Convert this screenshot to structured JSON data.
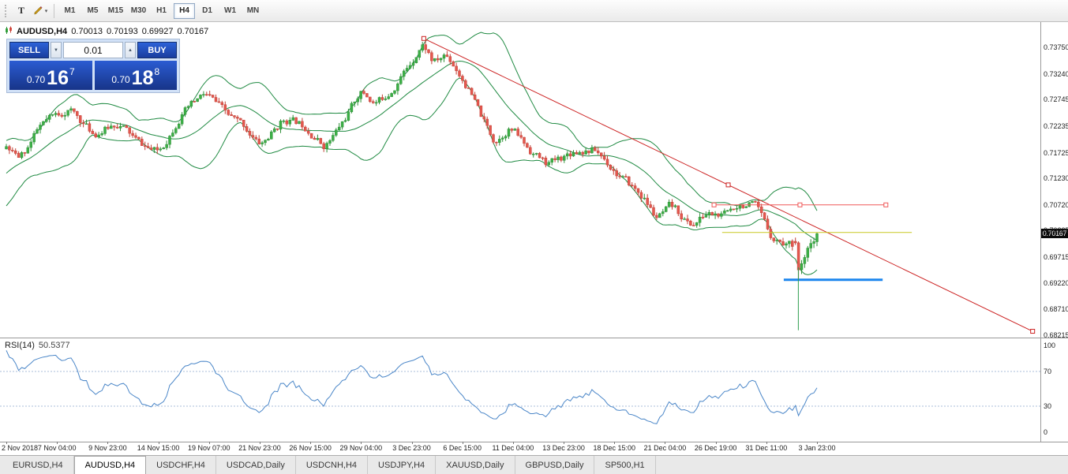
{
  "toolbar": {
    "tools": [
      {
        "name": "text-tool",
        "glyph": "T"
      },
      {
        "name": "draw-tool",
        "glyph": "",
        "dropdown_glyph": "▾"
      }
    ],
    "timeframes": [
      "M1",
      "M5",
      "M15",
      "M30",
      "H1",
      "H4",
      "D1",
      "W1",
      "MN"
    ],
    "active_timeframe": "H4"
  },
  "symbol_line": {
    "symbol": "AUDUSD,H4",
    "open": "0.70013",
    "high": "0.70193",
    "low": "0.69927",
    "close": "0.70167"
  },
  "trade_panel": {
    "sell_label": "SELL",
    "buy_label": "BUY",
    "volume": "0.01",
    "volume_down_glyph": "▼",
    "volume_up_glyph": "▲",
    "sell_price": {
      "prefix": "0.70",
      "big": "16",
      "sup": "7"
    },
    "buy_price": {
      "prefix": "0.70",
      "big": "18",
      "sup": "8"
    }
  },
  "price_scale": {
    "ticks": [
      "0.73750",
      "0.73240",
      "0.72745",
      "0.72235",
      "0.71725",
      "0.71230",
      "0.70720",
      "0.70225",
      "0.69715",
      "0.69220",
      "0.68710",
      "0.68215"
    ],
    "current_price": "0.70167"
  },
  "time_scale": {
    "ticks": [
      "2 Nov 2018",
      "7 Nov 04:00",
      "9 Nov 23:00",
      "14 Nov 15:00",
      "19 Nov 07:00",
      "21 Nov 23:00",
      "26 Nov 15:00",
      "29 Nov 04:00",
      "3 Dec 23:00",
      "6 Dec 15:00",
      "11 Dec 04:00",
      "13 Dec 23:00",
      "18 Dec 15:00",
      "21 Dec 04:00",
      "26 Dec 19:00",
      "31 Dec 11:00",
      "3 Jan 23:00"
    ]
  },
  "rsi_panel": {
    "label": "RSI(14)",
    "value": "50.5377",
    "scale_ticks": [
      {
        "label": "100",
        "value": 100
      },
      {
        "label": "70",
        "value": 70
      },
      {
        "label": "30",
        "value": 30
      },
      {
        "label": "0",
        "value": 0
      }
    ],
    "levels": [
      70,
      30
    ]
  },
  "tabs": {
    "items": [
      "EURUSD,H4",
      "AUDUSD,H4",
      "USDCHF,H4",
      "USDCAD,Daily",
      "USDCNH,H4",
      "USDJPY,H4",
      "XAUUSD,Daily",
      "GBPUSD,Daily",
      "SP500,H1"
    ],
    "active": "AUDUSD,H4"
  },
  "colors": {
    "bull": "#3cb046",
    "bull_edge": "#2f8f38",
    "bear": "#e4584f",
    "bear_edge": "#c24137",
    "bollinger": "#1f8a42",
    "trendline": "#cc2222",
    "hline_red": "#ef5858",
    "hline_yellow": "#c9c922",
    "hline_blue": "#1c86ee",
    "vline_green": "#2f9e4f",
    "rsi_line": "#4a86c8",
    "rsi_level": "#a8bcd8",
    "badge_bg": "#0a0a0a"
  },
  "chart_data": {
    "type": "candlestick",
    "title": "AUDUSD,H4",
    "symbol": "AUDUSD",
    "timeframe": "H4",
    "current_ohlc": {
      "open": 0.70013,
      "high": 0.70193,
      "low": 0.69927,
      "close": 0.70167
    },
    "y_axis": {
      "min": 0.68215,
      "max": 0.74245,
      "tick_values": [
        0.7375,
        0.7324,
        0.72745,
        0.72235,
        0.71725,
        0.7123,
        0.7072,
        0.70225,
        0.69715,
        0.6922,
        0.6871,
        0.68215
      ]
    },
    "x_axis": {
      "labels": [
        "2 Nov 2018",
        "7 Nov 04:00",
        "9 Nov 23:00",
        "14 Nov 15:00",
        "19 Nov 07:00",
        "21 Nov 23:00",
        "26 Nov 15:00",
        "29 Nov 04:00",
        "3 Dec 23:00",
        "6 Dec 15:00",
        "11 Dec 04:00",
        "13 Dec 23:00",
        "18 Dec 15:00",
        "21 Dec 04:00",
        "26 Dec 19:00",
        "31 Dec 11:00",
        "3 Jan 23:00"
      ]
    },
    "candle_count": 264,
    "price_anchors": [
      [
        0.0,
        0.7185
      ],
      [
        0.012,
        0.7152
      ],
      [
        0.04,
        0.7228
      ],
      [
        0.075,
        0.7258
      ],
      [
        0.105,
        0.7205
      ],
      [
        0.135,
        0.7232
      ],
      [
        0.16,
        0.719
      ],
      [
        0.185,
        0.717
      ],
      [
        0.21,
        0.7243
      ],
      [
        0.243,
        0.7288
      ],
      [
        0.27,
        0.7242
      ],
      [
        0.292,
        0.7222
      ],
      [
        0.31,
        0.7182
      ],
      [
        0.34,
        0.724
      ],
      [
        0.368,
        0.7222
      ],
      [
        0.39,
        0.718
      ],
      [
        0.42,
        0.7252
      ],
      [
        0.435,
        0.7298
      ],
      [
        0.452,
        0.7262
      ],
      [
        0.475,
        0.73
      ],
      [
        0.495,
        0.7345
      ],
      [
        0.512,
        0.739
      ],
      [
        0.525,
        0.7338
      ],
      [
        0.54,
        0.7365
      ],
      [
        0.565,
        0.73
      ],
      [
        0.585,
        0.7232
      ],
      [
        0.6,
        0.7188
      ],
      [
        0.618,
        0.7226
      ],
      [
        0.64,
        0.718
      ],
      [
        0.665,
        0.7148
      ],
      [
        0.698,
        0.7178
      ],
      [
        0.725,
        0.7178
      ],
      [
        0.752,
        0.7128
      ],
      [
        0.782,
        0.7088
      ],
      [
        0.8,
        0.704
      ],
      [
        0.818,
        0.7072
      ],
      [
        0.842,
        0.7028
      ],
      [
        0.862,
        0.7058
      ],
      [
        0.882,
        0.7048
      ],
      [
        0.9,
        0.7078
      ],
      [
        0.922,
        0.7068
      ],
      [
        0.94,
        0.7008
      ],
      [
        0.958,
        0.6998
      ],
      [
        0.973,
        0.6996
      ],
      [
        1.0,
        0.7017
      ]
    ],
    "tail_candles": [
      {
        "o": 0.7002,
        "h": 0.7009,
        "l": 0.6995,
        "c": 0.6999
      },
      {
        "o": 0.6999,
        "h": 0.7002,
        "l": 0.693,
        "c": 0.6947
      },
      {
        "o": 0.6947,
        "h": 0.6966,
        "l": 0.6939,
        "c": 0.6959
      },
      {
        "o": 0.6959,
        "h": 0.6976,
        "l": 0.6951,
        "c": 0.6971
      },
      {
        "o": 0.6971,
        "h": 0.6993,
        "l": 0.6963,
        "c": 0.6989
      },
      {
        "o": 0.6989,
        "h": 0.7006,
        "l": 0.6981,
        "c": 0.6998
      },
      {
        "o": 0.6998,
        "h": 0.7009,
        "l": 0.6989,
        "c": 0.70013
      },
      {
        "o": 0.70013,
        "h": 0.70193,
        "l": 0.69927,
        "c": 0.70167
      }
    ],
    "indicators": {
      "bollinger_bands": {
        "period": 20,
        "deviation": 2
      },
      "rsi": {
        "period": 14,
        "current_value": 50.5377,
        "levels": [
          70,
          30
        ],
        "range": [
          0,
          100
        ]
      }
    },
    "objects": [
      {
        "type": "trendline",
        "frac1": 0.515,
        "price1": 0.7392,
        "frac2": 1.266,
        "price2": 0.6829,
        "color_key": "trendline",
        "selected": true
      },
      {
        "type": "hline",
        "price": 0.7072,
        "frac1": 0.873,
        "frac2": 1.085,
        "color_key": "hline_red",
        "width": 1,
        "selected": true
      },
      {
        "type": "hline",
        "price": 0.7019,
        "frac1": 0.883,
        "frac2": 1.117,
        "color_key": "hline_yellow",
        "width": 1,
        "selected": false
      },
      {
        "type": "hline",
        "price": 0.6928,
        "frac1": 0.959,
        "frac2": 1.081,
        "color_key": "hline_blue",
        "width": 3,
        "selected": false
      },
      {
        "type": "vline",
        "frac": 0.977,
        "price1": 0.6952,
        "price2": 0.6831,
        "color_key": "vline_green",
        "width": 1
      }
    ]
  }
}
